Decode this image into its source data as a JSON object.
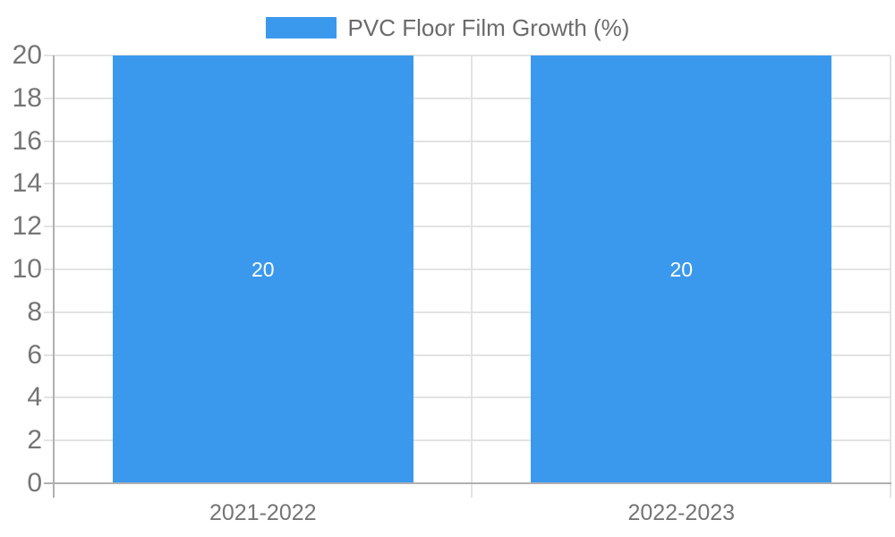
{
  "chart_data": {
    "type": "bar",
    "categories": [
      "2021-2022",
      "2022-2023"
    ],
    "series": [
      {
        "name": "PVC Floor Film Growth (%)",
        "values": [
          20,
          20
        ]
      }
    ],
    "value_labels": [
      "20",
      "20"
    ],
    "title": "",
    "xlabel": "",
    "ylabel": "",
    "ylim": [
      0,
      20
    ],
    "ytick_step": 2,
    "ytick_labels": [
      "0",
      "2",
      "4",
      "6",
      "8",
      "10",
      "12",
      "14",
      "16",
      "18",
      "20"
    ],
    "grid": true,
    "legend_position": "top",
    "colors": {
      "bar": "#3B99ED",
      "value_label": "#ffffff",
      "grid_line": "#e3e3e3",
      "axis_line": "#b0b0b0",
      "tick_label": "#757575",
      "legend_text": "#6b6b6b"
    }
  }
}
